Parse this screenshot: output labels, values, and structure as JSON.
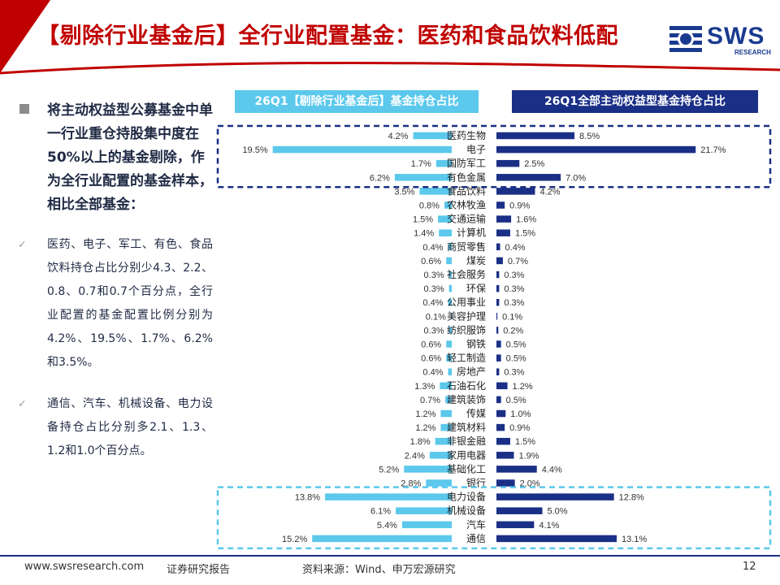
{
  "title": "【剔除行业基金后】全行业配置基金：医药和食品饮料低配",
  "logo": {
    "text": "SWS",
    "sub": "RESEARCH"
  },
  "left_panel": {
    "main_bullet": "将主动权益型公募基金中单一行业重仓持股集中度在50%以上的基金剔除，作为全行业配置的基金样本，相比全部基金：",
    "sub_bullets": [
      "医药、电子、军工、有色、食品饮料持仓占比分别少4.3、2.2、0.8、0.7和0.7个百分点，全行业配置的基金配置比例分别为4.2%、19.5%、1.7%、6.2%和3.5%。",
      "通信、汽车、机械设备、电力设备持仓占比分别多2.1、1.3、1.2和1.0个百分点。"
    ]
  },
  "colors": {
    "left_bar": "#5bc8ec",
    "right_bar": "#1a2f86",
    "title": "#c00000"
  },
  "chart_data": {
    "type": "bar",
    "orientation": "horizontal-butterfly",
    "categories": [
      "医药生物",
      "电子",
      "国防军工",
      "有色金属",
      "食品饮料",
      "农林牧渔",
      "交通运输",
      "计算机",
      "商贸零售",
      "煤炭",
      "社会服务",
      "环保",
      "公用事业",
      "美容护理",
      "纺织服饰",
      "钢铁",
      "轻工制造",
      "房地产",
      "石油石化",
      "建筑装饰",
      "传媒",
      "建筑材料",
      "非银金融",
      "家用电器",
      "基础化工",
      "银行",
      "电力设备",
      "机械设备",
      "汽车",
      "通信"
    ],
    "series": [
      {
        "name": "26Q1【剔除行业基金后】基金持仓占比",
        "values": [
          4.2,
          19.5,
          1.7,
          6.2,
          3.5,
          0.8,
          1.5,
          1.4,
          0.4,
          0.6,
          0.3,
          0.3,
          0.4,
          0.1,
          0.3,
          0.6,
          0.6,
          0.4,
          1.3,
          0.7,
          1.2,
          1.2,
          1.8,
          2.4,
          5.2,
          2.8,
          13.8,
          6.1,
          5.4,
          15.2
        ]
      },
      {
        "name": "26Q1全部主动权益型基金持仓占比",
        "values": [
          8.5,
          21.7,
          2.5,
          7.0,
          4.2,
          0.9,
          1.6,
          1.5,
          0.4,
          0.7,
          0.3,
          0.3,
          0.3,
          0.1,
          0.2,
          0.5,
          0.5,
          0.3,
          1.2,
          0.5,
          1.0,
          0.9,
          1.5,
          1.9,
          4.4,
          2.0,
          12.8,
          5.0,
          4.1,
          13.1
        ]
      }
    ],
    "value_suffix": "%",
    "highlight_top": [
      "医药生物",
      "电子",
      "国防军工",
      "有色金属"
    ],
    "highlight_bottom": [
      "电力设备",
      "机械设备",
      "汽车",
      "通信"
    ]
  },
  "footer": {
    "website": "www.swsresearch.com",
    "type": "证券研究报告",
    "source": "资料来源：Wind、申万宏源研究",
    "page": "12"
  }
}
